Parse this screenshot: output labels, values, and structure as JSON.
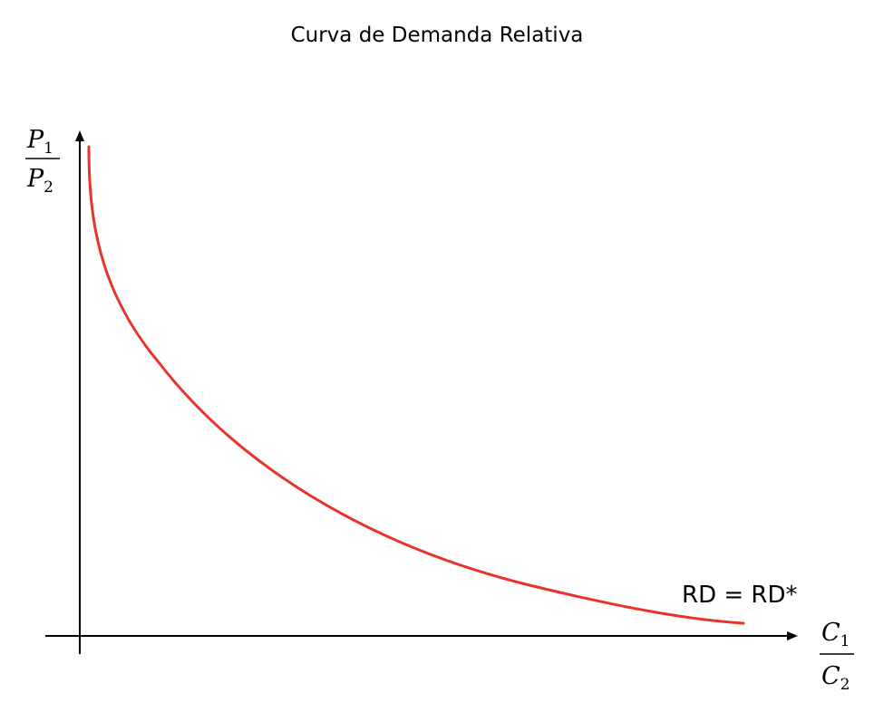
{
  "title": "Curva de Demanda Relativa",
  "y_axis": {
    "numerator": "P",
    "numerator_sub": "1",
    "denominator": "P",
    "denominator_sub": "2"
  },
  "x_axis": {
    "numerator": "C",
    "numerator_sub": "1",
    "denominator": "C",
    "denominator_sub": "2"
  },
  "curve": {
    "label": "RD = RD*",
    "color": "#e8332a"
  }
}
